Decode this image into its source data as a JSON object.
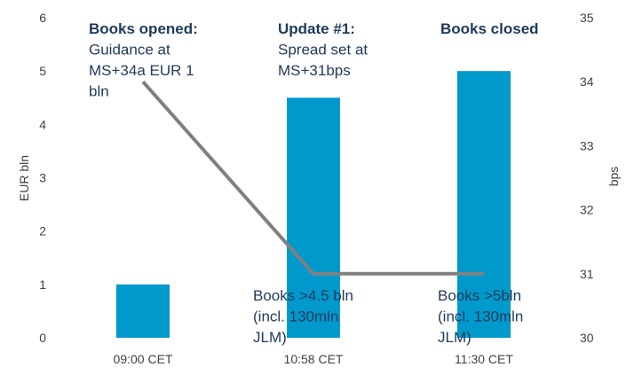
{
  "chart_data": {
    "type": "bar",
    "categories": [
      "09:00 CET",
      "10:58 CET",
      "11:30 CET"
    ],
    "series": [
      {
        "type": "bar",
        "axis": "left",
        "color": "#0099CC",
        "values": [
          1,
          4.5,
          5
        ]
      },
      {
        "type": "line",
        "axis": "right",
        "color": "#808080",
        "values": [
          34,
          31,
          31
        ]
      }
    ],
    "ylabel": "EUR bln",
    "ylim": [
      0,
      6
    ],
    "yticks": [
      "0",
      "1",
      "2",
      "3",
      "4",
      "5",
      "6"
    ],
    "y2label": "bps",
    "y2lim": [
      30,
      35
    ],
    "y2ticks": [
      "30",
      "31",
      "32",
      "33",
      "34",
      "35"
    ],
    "grid": false,
    "annotations": [
      {
        "title": "Books opened:",
        "lines": [
          "Guidance at",
          "MS+34a EUR 1",
          "bln"
        ]
      },
      {
        "title": "Update #1:",
        "lines": [
          "Spread set at",
          "MS+31bps"
        ]
      },
      {
        "title": "Books closed",
        "lines": []
      },
      {
        "title": "",
        "lines": [
          "Books >4.5 bln",
          "(incl. 130mln",
          "JLM)"
        ]
      },
      {
        "title": "",
        "lines": [
          "Books >5bln",
          "(incl. 130mln",
          "JLM)"
        ]
      }
    ]
  }
}
